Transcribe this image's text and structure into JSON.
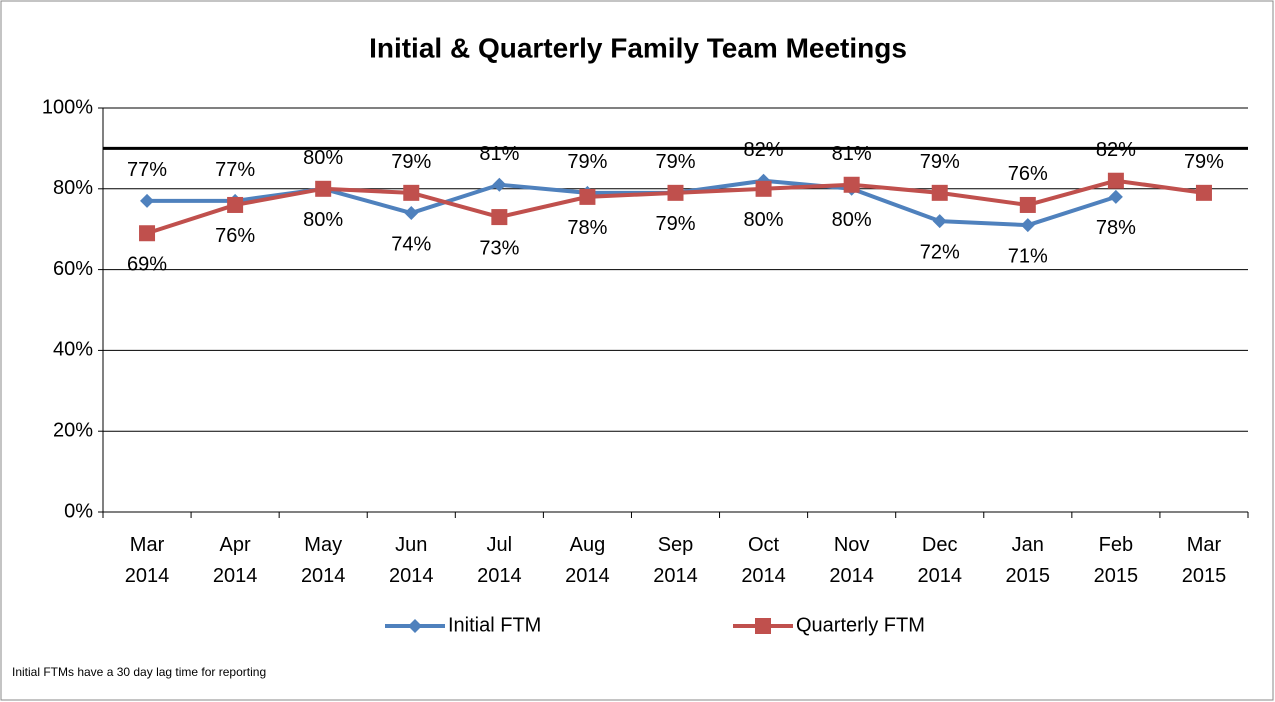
{
  "chart_data": {
    "type": "line",
    "title": "Initial & Quarterly Family Team Meetings",
    "categories": [
      "Mar 2014",
      "Apr 2014",
      "May 2014",
      "Jun 2014",
      "Jul 2014",
      "Aug 2014",
      "Sep 2014",
      "Oct 2014",
      "Nov 2014",
      "Dec 2014",
      "Jan 2015",
      "Feb 2015",
      "Mar 2015"
    ],
    "series": [
      {
        "name": "Initial FTM",
        "color": "#4f81bd",
        "marker": "diamond",
        "values": [
          77,
          77,
          80,
          74,
          81,
          79,
          79,
          82,
          80,
          72,
          71,
          78,
          null
        ],
        "value_labels": [
          "77%",
          "77%",
          "80%",
          "74%",
          "81%",
          "79%",
          "79%",
          "82%",
          "80%",
          "72%",
          "71%",
          "78%",
          null
        ]
      },
      {
        "name": "Quarterly FTM",
        "color": "#c0504d",
        "marker": "square",
        "values": [
          69,
          76,
          80,
          79,
          73,
          78,
          79,
          80,
          81,
          79,
          76,
          82,
          79
        ],
        "value_labels": [
          "69%",
          "76%",
          "80%",
          "79%",
          "73%",
          "78%",
          "79%",
          "80%",
          "81%",
          "79%",
          "76%",
          "82%",
          "79%"
        ]
      }
    ],
    "ylim": [
      0,
      100
    ],
    "yticks": [
      {
        "value": 0,
        "label": "0%"
      },
      {
        "value": 20,
        "label": "20%"
      },
      {
        "value": 40,
        "label": "40%"
      },
      {
        "value": 60,
        "label": "60%"
      },
      {
        "value": 80,
        "label": "80%"
      },
      {
        "value": 100,
        "label": "100%"
      }
    ],
    "grid": true,
    "reference_line": 90,
    "legend": "bottom",
    "footnote": "Initial FTMs have a 30 day lag time for reporting"
  }
}
